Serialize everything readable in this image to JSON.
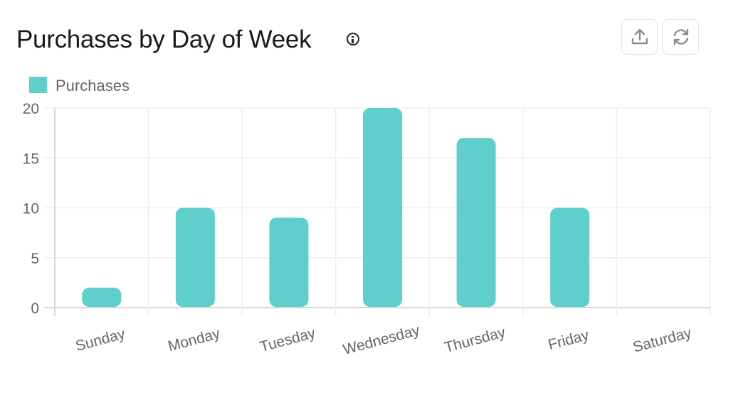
{
  "header": {
    "title": "Purchases by Day of Week",
    "info_icon": "info-icon",
    "export_icon": "upload-icon",
    "refresh_icon": "refresh-icon"
  },
  "chart_data": {
    "type": "bar",
    "title": "Purchases by Day of Week",
    "categories": [
      "Sunday",
      "Monday",
      "Tuesday",
      "Wednesday",
      "Thursday",
      "Friday",
      "Saturday"
    ],
    "series": [
      {
        "name": "Purchases",
        "values": [
          2,
          10,
          9,
          20,
          17,
          10,
          0
        ],
        "color": "#5ecfcb"
      }
    ],
    "xlabel": "",
    "ylabel": "",
    "ylim": [
      0,
      20
    ],
    "yticks": [
      0,
      5,
      10,
      15,
      20
    ],
    "grid": true,
    "legend": "top-left"
  }
}
